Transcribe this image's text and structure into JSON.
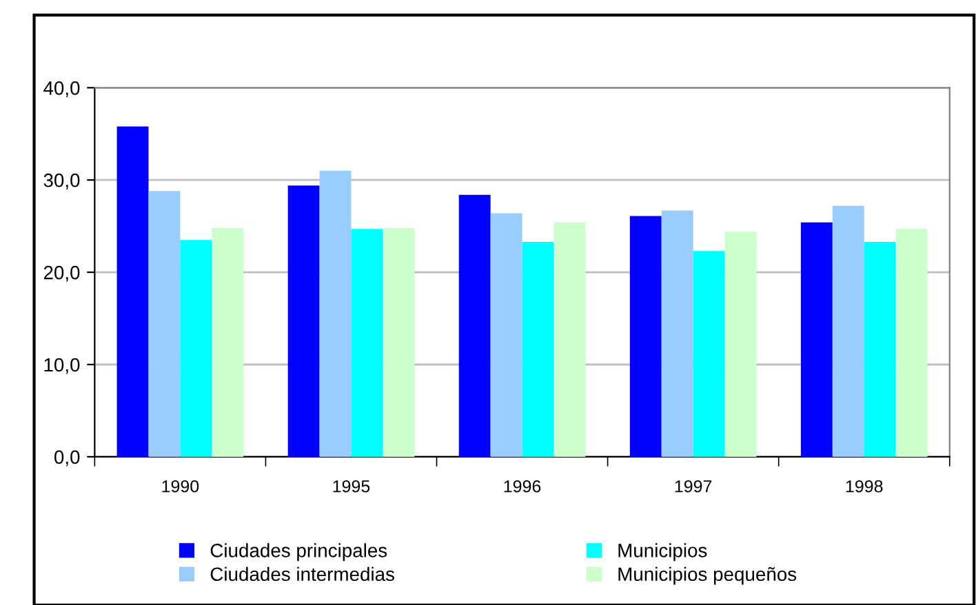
{
  "chart_data": {
    "type": "bar",
    "categories": [
      "1990",
      "1995",
      "1996",
      "1997",
      "1998"
    ],
    "series": [
      {
        "name": "Ciudades principales",
        "color": "#0000ff",
        "values": [
          35.8,
          29.4,
          28.4,
          26.1,
          25.4
        ]
      },
      {
        "name": "Ciudades intermedias",
        "color": "#99ccff",
        "values": [
          28.8,
          31.0,
          26.4,
          26.7,
          27.2
        ]
      },
      {
        "name": "Municipios",
        "color": "#00ffff",
        "values": [
          23.5,
          24.7,
          23.3,
          22.3,
          23.3
        ]
      },
      {
        "name": "Municipios pequeños",
        "color": "#ccffcc",
        "values": [
          24.8,
          24.8,
          25.4,
          24.4,
          24.7
        ]
      }
    ],
    "ylim": [
      0,
      40
    ],
    "yticks": [
      {
        "value": 0,
        "label": "0,0"
      },
      {
        "value": 10,
        "label": "10,0"
      },
      {
        "value": 20,
        "label": "20,0"
      },
      {
        "value": 30,
        "label": "30,0"
      },
      {
        "value": 40,
        "label": "40,0"
      }
    ],
    "grid": "y",
    "legend": "bottom"
  }
}
